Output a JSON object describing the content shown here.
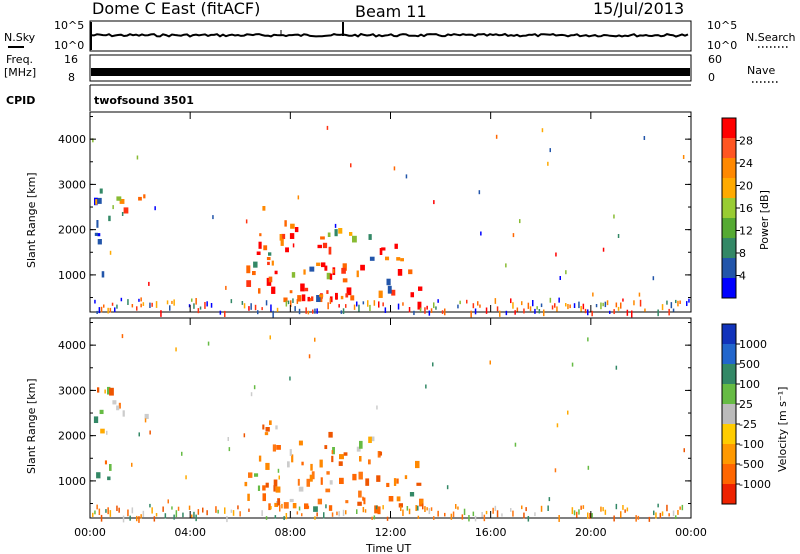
{
  "header": {
    "station": "Dome C East (fitACF)",
    "beam": "Beam 11",
    "date": "15/Jul/2013"
  },
  "side_labels": {
    "nsky": "N.Sky",
    "nsearch": "N.Search",
    "freq": "Freq.",
    "freq_unit": "[MHz]",
    "nave": "Nave",
    "cpid": "CPID"
  },
  "strip_ticks": {
    "noise_top_left": "10^5",
    "noise_bottom_left": "10^0",
    "noise_top_right": "10^5",
    "noise_bottom_right": "10^0",
    "freq_top": "16",
    "freq_bottom": "8",
    "nave_top": "60",
    "nave_bottom": "0"
  },
  "cpid_text": "twofsound 3501",
  "chart_data": [
    {
      "type": "heatmap",
      "title": "Power",
      "ylabel": "Slant Range [km]",
      "colorbar_label": "Power [dB]",
      "yticks": [
        "1000",
        "2000",
        "3000",
        "4000"
      ],
      "ylim": [
        180,
        4600
      ],
      "colorbar_ticks": [
        "28",
        "24",
        "20",
        "16",
        "12",
        "8",
        "4"
      ],
      "colorbar_colors": [
        "#ff0000",
        "#ff5522",
        "#ff8800",
        "#ffaa00",
        "#99cc33",
        "#55aa33",
        "#338866",
        "#2255aa",
        "#0000ff"
      ],
      "grid": false
    },
    {
      "type": "heatmap",
      "title": "Velocity",
      "ylabel": "Slant Range [km]",
      "colorbar_label": "Velocity [m s⁻¹]",
      "yticks": [
        "1000",
        "2000",
        "3000",
        "4000"
      ],
      "ylim": [
        180,
        4600
      ],
      "colorbar_ticks": [
        "1000",
        "500",
        "100",
        "25",
        "-25",
        "-100",
        "-500",
        "-1000"
      ],
      "colorbar_colors": [
        "#1133bb",
        "#2266cc",
        "#338866",
        "#66bb44",
        "#bbbbbb",
        "#ffcc00",
        "#ff9900",
        "#ff6600",
        "#ee2200"
      ],
      "grid": false
    }
  ],
  "x_axis": {
    "xlabel": "Time UT",
    "ticks": [
      "00:00",
      "04:00",
      "08:00",
      "12:00",
      "16:00",
      "20:00",
      "00:00"
    ]
  }
}
